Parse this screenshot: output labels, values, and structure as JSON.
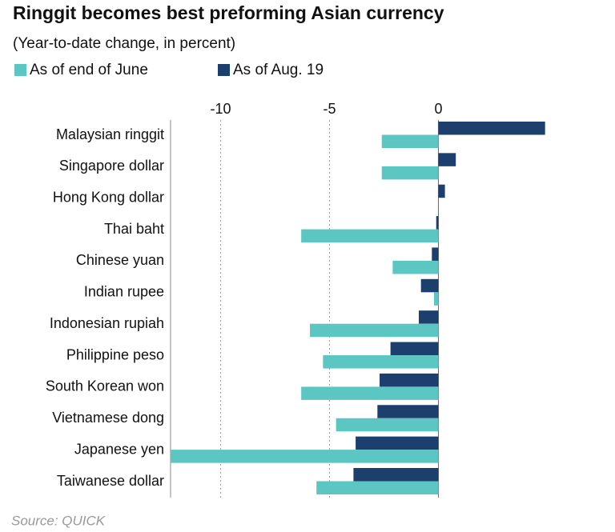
{
  "chart_data": {
    "type": "hbar",
    "title": "Ringgit becomes best preforming Asian currency",
    "subtitle": "(Year-to-date change, in percent)",
    "source": "Source: QUICK",
    "categories": [
      "Malaysian ringgit",
      "Singapore dollar",
      "Hong Kong dollar",
      "Thai baht",
      "Chinese yuan",
      "Indian rupee",
      "Indonesian rupiah",
      "Philippine peso",
      "South Korean won",
      "Vietnamese dong",
      "Japanese yen",
      "Taiwanese dollar"
    ],
    "series": [
      {
        "name": "As of end of June",
        "color": "#5cc6c3",
        "values": [
          -2.6,
          -2.6,
          0,
          -6.3,
          -2.1,
          -0.2,
          -5.9,
          -5.3,
          -6.3,
          -4.7,
          -12.3,
          -5.6
        ]
      },
      {
        "name": "As of Aug. 19",
        "color": "#1d3f6e",
        "values": [
          4.9,
          0.8,
          0.3,
          -0.1,
          -0.3,
          -0.8,
          -0.9,
          -2.2,
          -2.7,
          -2.8,
          -3.8,
          -3.9
        ]
      }
    ],
    "xlim": [
      -12.3,
      5.5
    ],
    "xticks": [
      -10,
      -5,
      0
    ],
    "grid": true
  }
}
